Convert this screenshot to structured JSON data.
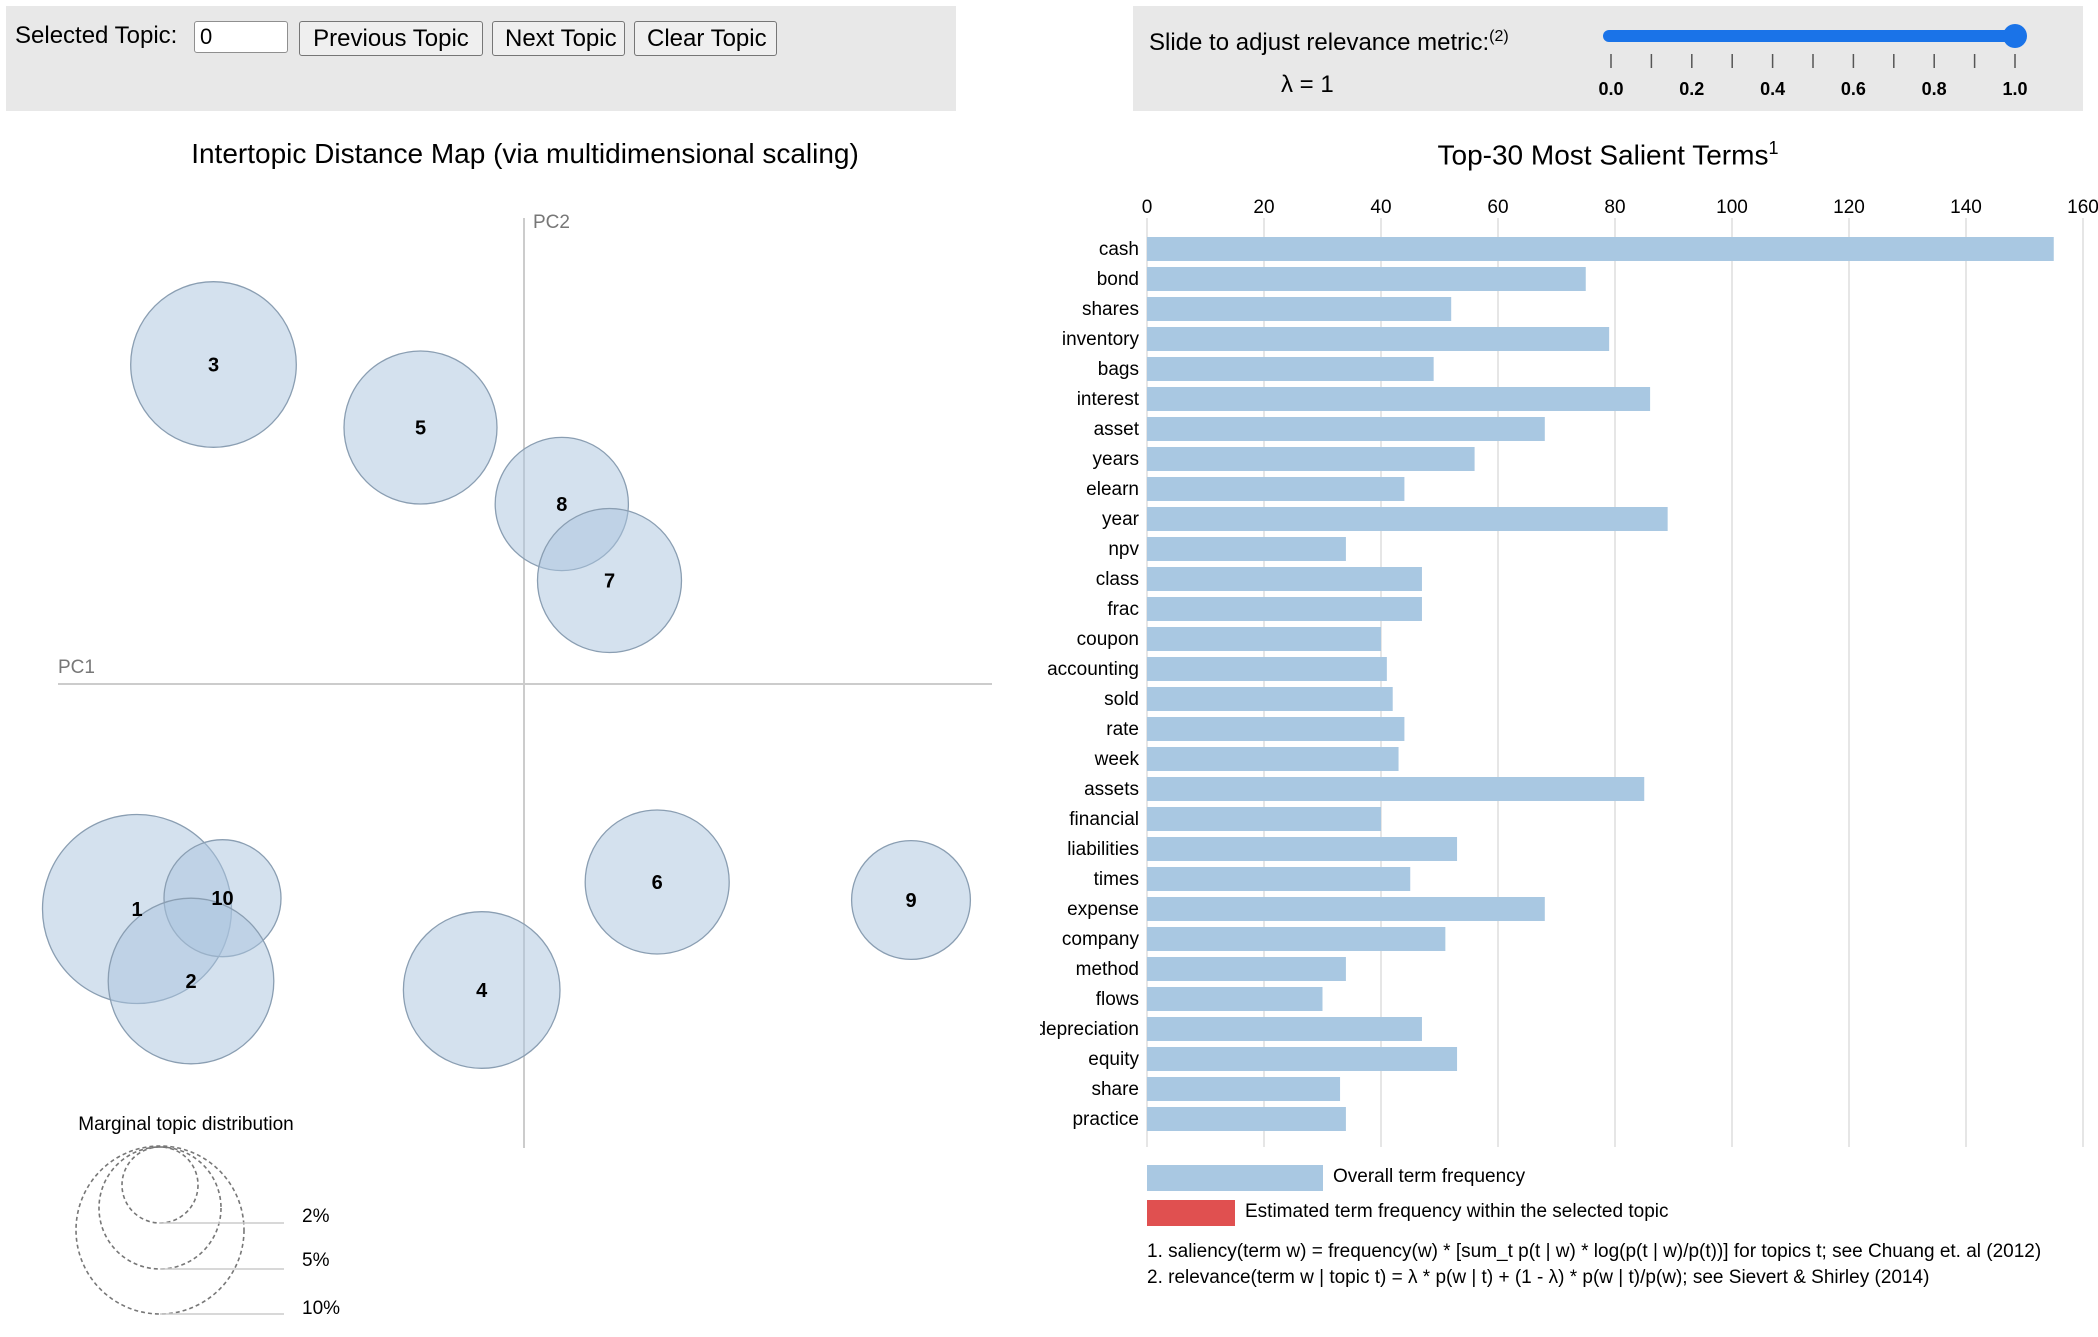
{
  "controls": {
    "selected_topic_label": "Selected Topic:",
    "selected_topic_value": "0",
    "prev_label": "Previous Topic",
    "next_label": "Next Topic",
    "clear_label": "Clear Topic"
  },
  "relevance": {
    "label": "Slide to adjust relevance metric:",
    "footnote_ref": "(2)",
    "lambda_text": "λ = 1",
    "lambda_value": 1.0,
    "ticks": [
      "0.0",
      "0.2",
      "0.4",
      "0.6",
      "0.8",
      "1.0"
    ],
    "accent_color": "#1a73e8"
  },
  "left_title": "Intertopic Distance Map (via multidimensional scaling)",
  "intertopic_map": {
    "pc1_label": "PC1",
    "pc2_label": "PC2",
    "bubble_fill": "#a9c4dd",
    "topics": [
      {
        "id": "3",
        "x": -3.45,
        "y": 3.55,
        "r": 0.92
      },
      {
        "id": "5",
        "x": -1.15,
        "y": 2.85,
        "r": 0.85
      },
      {
        "id": "8",
        "x": 0.42,
        "y": 2.0,
        "r": 0.74
      },
      {
        "id": "7",
        "x": 0.95,
        "y": 1.15,
        "r": 0.8
      },
      {
        "id": "1",
        "x": -4.3,
        "y": -2.5,
        "r": 1.05
      },
      {
        "id": "10",
        "x": -3.35,
        "y": -2.38,
        "r": 0.65
      },
      {
        "id": "2",
        "x": -3.7,
        "y": -3.3,
        "r": 0.92
      },
      {
        "id": "4",
        "x": -0.47,
        "y": -3.4,
        "r": 0.87
      },
      {
        "id": "6",
        "x": 1.48,
        "y": -2.2,
        "r": 0.8
      },
      {
        "id": "9",
        "x": 4.3,
        "y": -2.4,
        "r": 0.66
      }
    ],
    "marginal_title": "Marginal topic distribution",
    "marginal_legend": [
      "2%",
      "5%",
      "10%"
    ]
  },
  "right_title": "Top-30 Most Salient Terms",
  "right_title_sup": "1",
  "chart_data": {
    "type": "bar",
    "orientation": "horizontal",
    "title": "Top-30 Most Salient Terms",
    "xlim": [
      0,
      160
    ],
    "xticks": [
      "0",
      "20",
      "40",
      "60",
      "80",
      "100",
      "120",
      "140",
      "160"
    ],
    "categories": [
      "cash",
      "bond",
      "shares",
      "inventory",
      "bags",
      "interest",
      "asset",
      "years",
      "elearn",
      "year",
      "npv",
      "class",
      "frac",
      "coupon",
      "accounting",
      "sold",
      "rate",
      "week",
      "assets",
      "financial",
      "liabilities",
      "times",
      "expense",
      "company",
      "method",
      "flows",
      "depreciation",
      "equity",
      "share",
      "practice"
    ],
    "series": [
      {
        "name": "Overall term frequency",
        "color": "#a9c8e2",
        "values": [
          155,
          75,
          52,
          79,
          49,
          86,
          68,
          56,
          44,
          89,
          34,
          47,
          47,
          40,
          41,
          42,
          44,
          43,
          85,
          40,
          53,
          45,
          68,
          51,
          34,
          30,
          47,
          53,
          33,
          34
        ]
      }
    ],
    "legend": [
      {
        "label": "Overall term frequency",
        "color": "#a9c8e2"
      },
      {
        "label": "Estimated term frequency within the selected topic",
        "color": "#e05050"
      }
    ],
    "grid": true
  },
  "notes": [
    "1. saliency(term w) = frequency(w) * [sum_t p(t | w) * log(p(t | w)/p(t))] for topics t; see Chuang et. al (2012)",
    "2. relevance(term w | topic t) = λ * p(w | t) + (1 - λ) * p(w | t)/p(w); see Sievert & Shirley (2014)"
  ]
}
